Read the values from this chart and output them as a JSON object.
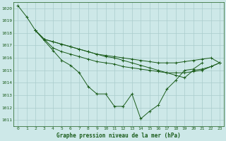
{
  "background_color": "#cde8e8",
  "grid_color": "#aacccc",
  "line_color": "#1a5c1a",
  "marker": "+",
  "xlabel": "Graphe pression niveau de la mer (hPa)",
  "xlim": [
    -0.5,
    23.5
  ],
  "ylim": [
    1010.5,
    1020.5
  ],
  "yticks": [
    1011,
    1012,
    1013,
    1014,
    1015,
    1016,
    1017,
    1018,
    1019,
    1020
  ],
  "xticks": [
    0,
    1,
    2,
    3,
    4,
    5,
    6,
    7,
    8,
    9,
    10,
    11,
    12,
    13,
    14,
    15,
    16,
    17,
    18,
    19,
    20,
    21,
    22,
    23
  ],
  "series": [
    [
      1020.2,
      1019.3,
      1018.2,
      1017.4,
      1016.6,
      1015.8,
      1015.4,
      1014.8,
      1013.7,
      1013.1,
      1013.1,
      1012.1,
      1012.1,
      1013.1,
      1011.1,
      1011.7,
      1012.2,
      1013.5,
      1014.2,
      1015.0,
      1015.1,
      1015.6
    ],
    [
      1018.2,
      1017.5,
      1017.3,
      1017.1,
      1016.9,
      1016.7,
      1016.5,
      1016.3,
      1016.2,
      1016.1,
      1016.0,
      1015.9,
      1015.8,
      1015.7,
      1015.6,
      1015.6,
      1015.6,
      1015.7,
      1015.8,
      1015.9,
      1016.0,
      1015.6
    ],
    [
      1018.2,
      1017.5,
      1017.3,
      1017.1,
      1016.9,
      1016.7,
      1016.5,
      1016.3,
      1016.1,
      1016.0,
      1015.8,
      1015.6,
      1015.4,
      1015.2,
      1015.0,
      1014.8,
      1014.6,
      1014.4,
      1015.0,
      1015.1,
      1015.3,
      1015.6
    ],
    [
      1018.2,
      1017.5,
      1016.8,
      1016.5,
      1016.3,
      1016.1,
      1015.9,
      1015.7,
      1015.6,
      1015.5,
      1015.3,
      1015.2,
      1015.1,
      1015.0,
      1014.9,
      1014.8,
      1014.8,
      1014.8,
      1014.9,
      1015.0,
      1015.3,
      1015.6
    ]
  ],
  "series_x": [
    [
      0,
      1,
      2,
      3,
      4,
      5,
      6,
      7,
      8,
      9,
      10,
      11,
      12,
      13,
      14,
      15,
      16,
      17,
      18,
      19,
      20,
      21
    ],
    [
      2,
      3,
      4,
      5,
      6,
      7,
      8,
      9,
      10,
      11,
      12,
      13,
      14,
      15,
      16,
      17,
      18,
      19,
      20,
      21,
      22,
      23
    ],
    [
      2,
      3,
      4,
      5,
      6,
      7,
      8,
      9,
      10,
      11,
      12,
      13,
      14,
      15,
      16,
      17,
      18,
      19,
      20,
      21,
      22,
      23
    ],
    [
      2,
      3,
      4,
      5,
      6,
      7,
      8,
      9,
      10,
      11,
      12,
      13,
      14,
      15,
      16,
      17,
      18,
      19,
      20,
      21,
      22,
      23
    ]
  ]
}
